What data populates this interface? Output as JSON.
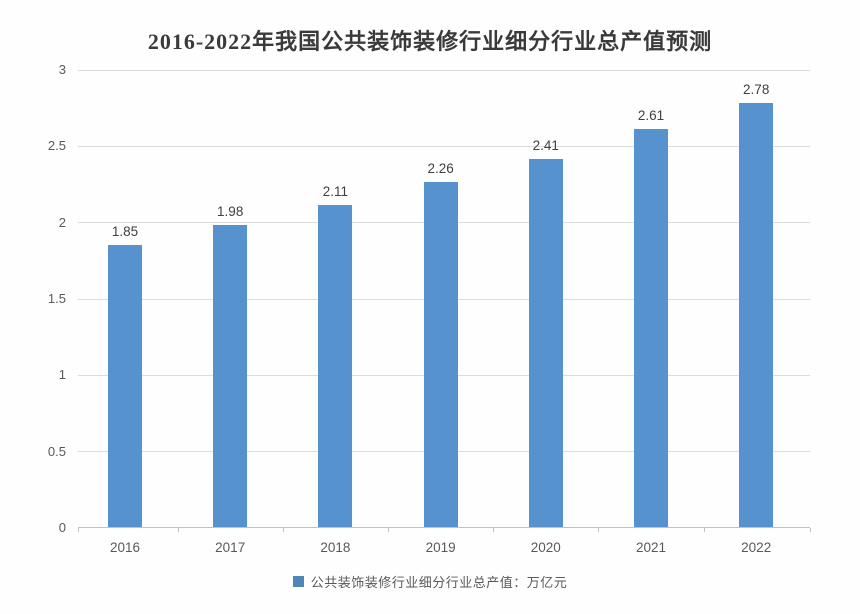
{
  "title": "2016-2022年我国公共装饰装修行业细分行业总产值预测",
  "legend": {
    "label": "公共装饰装修行业细分行业总产值：万亿元",
    "marker_color": "#4f86b8"
  },
  "colors": {
    "bar": "#5592ce",
    "gridline": "#dcdcdc",
    "axis": "#c2c2c2",
    "title_text": "#3a3a3a",
    "tick_text": "#595959",
    "data_label_text": "#3f3f3f",
    "background": "#fefefe"
  },
  "chart_data": {
    "type": "bar",
    "title": "2016-2022年我国公共装饰装修行业细分行业总产值预测",
    "categories": [
      "2016",
      "2017",
      "2018",
      "2019",
      "2020",
      "2021",
      "2022"
    ],
    "values": [
      1.85,
      1.98,
      2.11,
      2.26,
      2.41,
      2.61,
      2.78
    ],
    "data_labels": [
      "1.85",
      "1.98",
      "2.11",
      "2.26",
      "2.41",
      "2.61",
      "2.78"
    ],
    "series_name": "公共装饰装修行业细分行业总产值：万亿元",
    "xlabel": "",
    "ylabel": "",
    "ylim": [
      0,
      3
    ],
    "yticks": [
      "0",
      "0.5",
      "1",
      "1.5",
      "2",
      "2.5",
      "3"
    ],
    "ytick_values": [
      0,
      0.5,
      1,
      1.5,
      2,
      2.5,
      3
    ],
    "grid": true,
    "legend_position": "bottom"
  }
}
